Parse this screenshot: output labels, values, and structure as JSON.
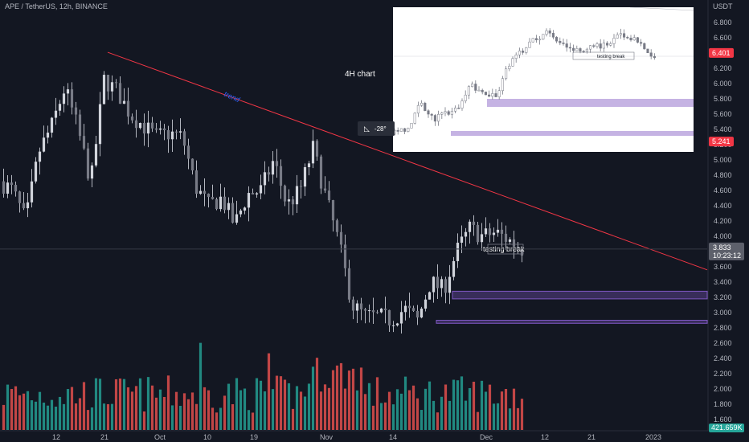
{
  "header": {
    "symbol": "APE / TetherUS, 12h, BINANCE"
  },
  "price_axis": {
    "currency": "USDT",
    "ticks": [
      "6.800",
      "6.600",
      "6.400",
      "6.200",
      "6.000",
      "5.800",
      "5.600",
      "5.400",
      "5.200",
      "5.000",
      "4.800",
      "4.600",
      "4.400",
      "4.200",
      "4.000",
      "3.800",
      "3.600",
      "3.400",
      "3.200",
      "3.000",
      "2.800",
      "2.600",
      "2.400",
      "2.200",
      "2.000",
      "1.800",
      "1.600"
    ],
    "badge_top": "6.401",
    "badge_mid": "5.241",
    "current_price": "3.833",
    "countdown": "10:23:12",
    "volume_label": "421.659K"
  },
  "time_axis": {
    "ticks": [
      "12",
      "21",
      "Oct",
      "10",
      "19",
      "Nov",
      "14",
      "Dec",
      "12",
      "21",
      "2023"
    ]
  },
  "annotations": {
    "trend_label": "trend",
    "testing_break": "testing break",
    "inset_title": "4H chart",
    "inset_testing_break": "testing break",
    "angle_label": "-28°"
  },
  "colors": {
    "up": "#b2b5be",
    "down": "#b2b5be",
    "vol_up": "#26a69a",
    "vol_down": "#ef5350",
    "trendline": "#f23645",
    "zone": "#7e57c2",
    "background": "#131722"
  },
  "chart_data": {
    "type": "candlestick",
    "title": "APE / TetherUS, 12h, BINANCE",
    "ylim": [
      1.55,
      7.0
    ],
    "price_series": [
      {
        "x": "Sep 04",
        "y": 4.72
      },
      {
        "x": "Sep 07",
        "y": 4.6
      },
      {
        "x": "Sep 09",
        "y": 4.2
      },
      {
        "x": "Sep 11",
        "y": 5.1
      },
      {
        "x": "Sep 13",
        "y": 5.45
      },
      {
        "x": "Sep 15",
        "y": 5.95
      },
      {
        "x": "Sep 17",
        "y": 5.4
      },
      {
        "x": "Sep 19",
        "y": 4.7
      },
      {
        "x": "Sep 21",
        "y": 6.05
      },
      {
        "x": "Sep 23",
        "y": 5.9
      },
      {
        "x": "Sep 26",
        "y": 5.6
      },
      {
        "x": "Sep 29",
        "y": 5.45
      },
      {
        "x": "Oct 02",
        "y": 5.3
      },
      {
        "x": "Oct 05",
        "y": 5.35
      },
      {
        "x": "Oct 08",
        "y": 5.3
      },
      {
        "x": "Oct 10",
        "y": 4.65
      },
      {
        "x": "Oct 12",
        "y": 4.4
      },
      {
        "x": "Oct 15",
        "y": 4.5
      },
      {
        "x": "Oct 17",
        "y": 4.15
      },
      {
        "x": "Oct 20",
        "y": 4.55
      },
      {
        "x": "Oct 23",
        "y": 4.6
      },
      {
        "x": "Oct 26",
        "y": 5.0
      },
      {
        "x": "Oct 29",
        "y": 4.4
      },
      {
        "x": "Nov 01",
        "y": 4.6
      },
      {
        "x": "Nov 03",
        "y": 5.15
      },
      {
        "x": "Nov 05",
        "y": 4.5
      },
      {
        "x": "Nov 07",
        "y": 3.9
      },
      {
        "x": "Nov 09",
        "y": 3.1
      },
      {
        "x": "Nov 11",
        "y": 2.95
      },
      {
        "x": "Nov 14",
        "y": 2.95
      },
      {
        "x": "Nov 17",
        "y": 2.9
      },
      {
        "x": "Nov 20",
        "y": 3.05
      },
      {
        "x": "Nov 22",
        "y": 2.9
      },
      {
        "x": "Nov 24",
        "y": 3.4
      },
      {
        "x": "Nov 26",
        "y": 3.3
      },
      {
        "x": "Nov 28",
        "y": 3.8
      },
      {
        "x": "Nov 30",
        "y": 4.1
      },
      {
        "x": "Dec 02",
        "y": 4.0
      },
      {
        "x": "Dec 04",
        "y": 4.05
      },
      {
        "x": "Dec 06",
        "y": 3.95
      },
      {
        "x": "Dec 08",
        "y": 3.833
      }
    ],
    "trendline": {
      "from": {
        "x": "Sep 21",
        "y": 6.4
      },
      "to": {
        "x": "Dec 20",
        "y": 3.55
      }
    },
    "zones": [
      {
        "y_low": 3.18,
        "y_high": 3.28
      },
      {
        "y_low": 2.86,
        "y_high": 2.9
      }
    ],
    "volume_last": "421.659K"
  }
}
